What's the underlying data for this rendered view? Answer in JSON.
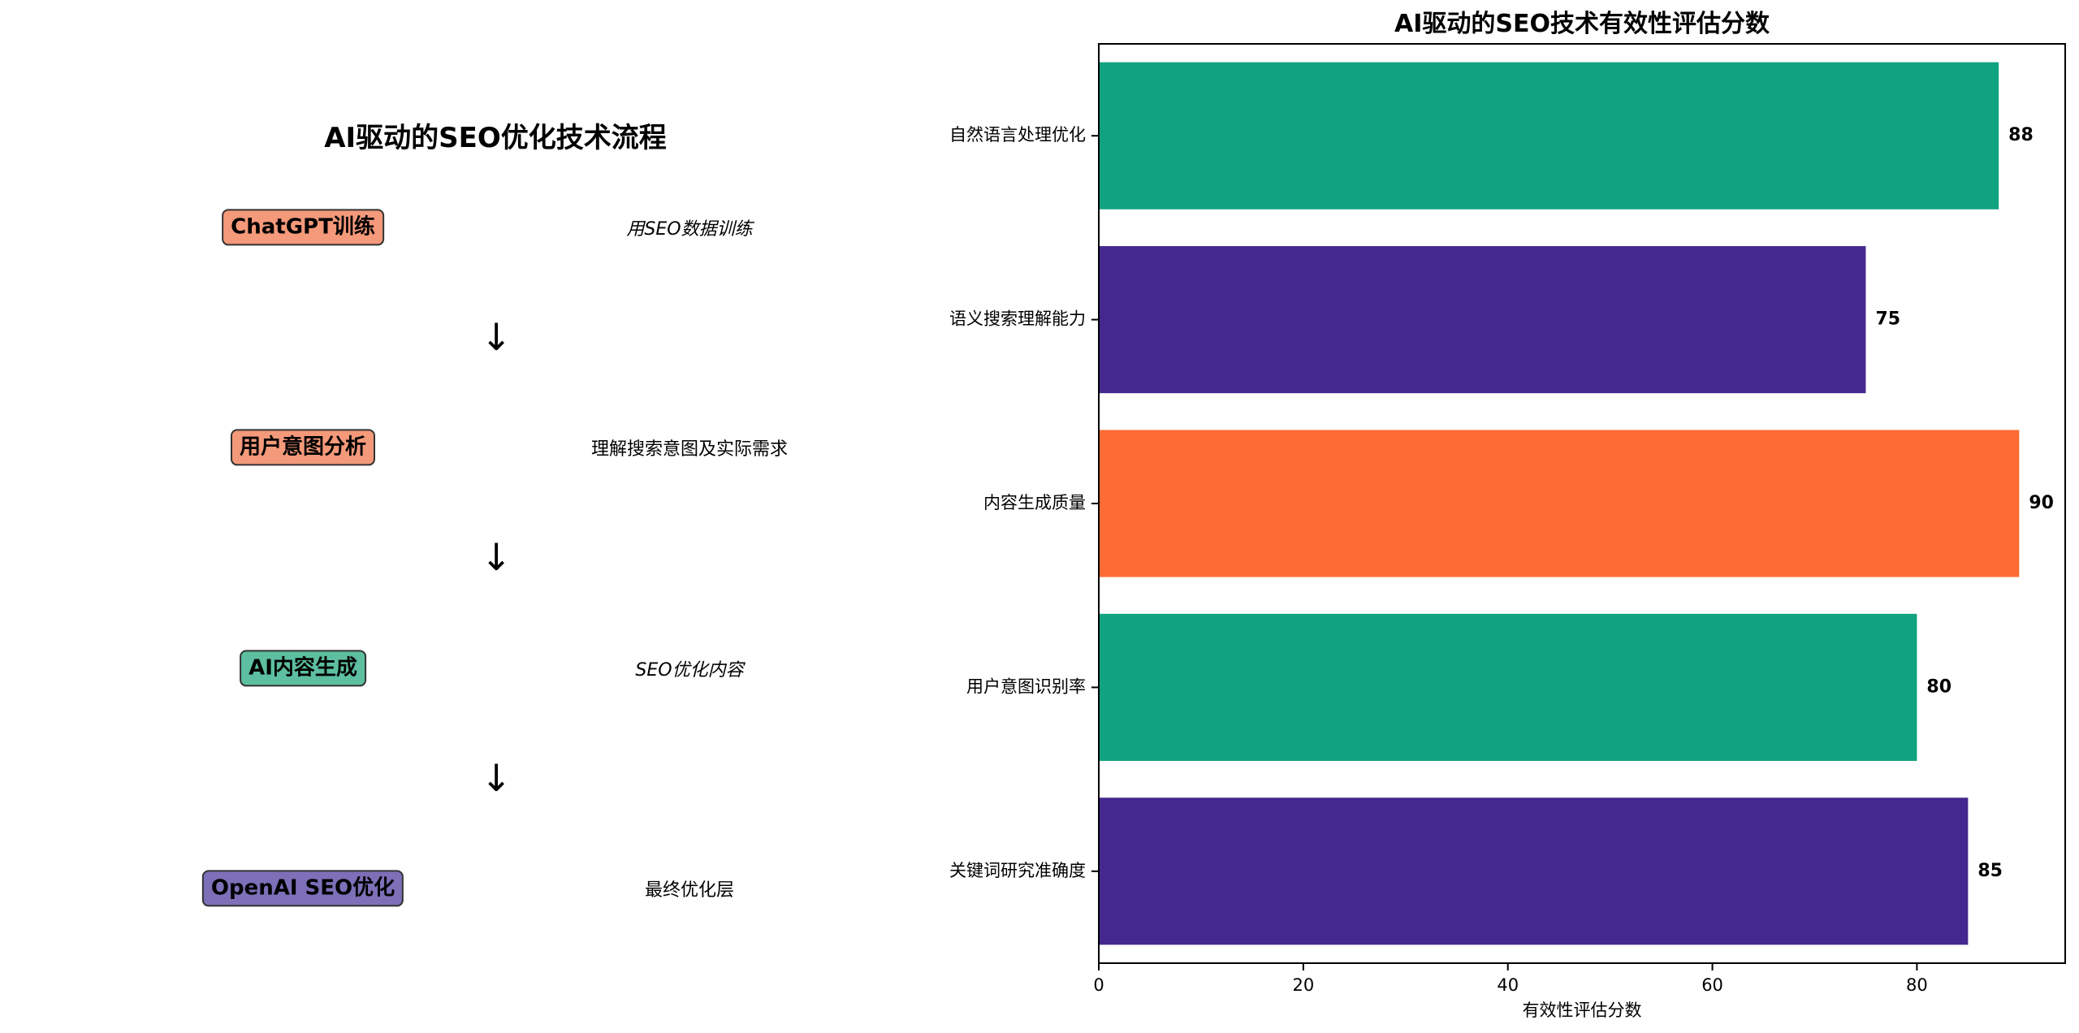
{
  "flow": {
    "title": "AI驱动的SEO优化技术流程",
    "steps": [
      {
        "label": "ChatGPT训练",
        "desc": "用SEO数据训练",
        "color": "#f4997a"
      },
      {
        "label": "用户意图分析",
        "desc": "理解搜索意图及实际需求",
        "color": "#f4997a"
      },
      {
        "label": "AI内容生成",
        "desc": "SEO优化内容",
        "color": "#5dbfa0"
      },
      {
        "label": "OpenAI SEO优化",
        "desc": "最终优化层",
        "color": "#7d6fb8"
      }
    ],
    "arrow": "↓"
  },
  "chart_data": {
    "type": "bar",
    "orientation": "horizontal",
    "title": "AI驱动的SEO技术有效性评估分数",
    "xlabel": "有效性评估分数",
    "ylabel": "",
    "categories": [
      "自然语言处理优化",
      "语义搜索理解能力",
      "内容生成质量",
      "用户意图识别率",
      "关键词研究准确度"
    ],
    "values": [
      88,
      75,
      90,
      80,
      85
    ],
    "colors": [
      "#10a37f",
      "#44288f",
      "#ff6b35",
      "#10a37f",
      "#44288f"
    ],
    "xlim": [
      0,
      94.5
    ],
    "xticks": [
      0,
      20,
      40,
      60,
      80
    ],
    "grid": false,
    "legend": "none"
  }
}
